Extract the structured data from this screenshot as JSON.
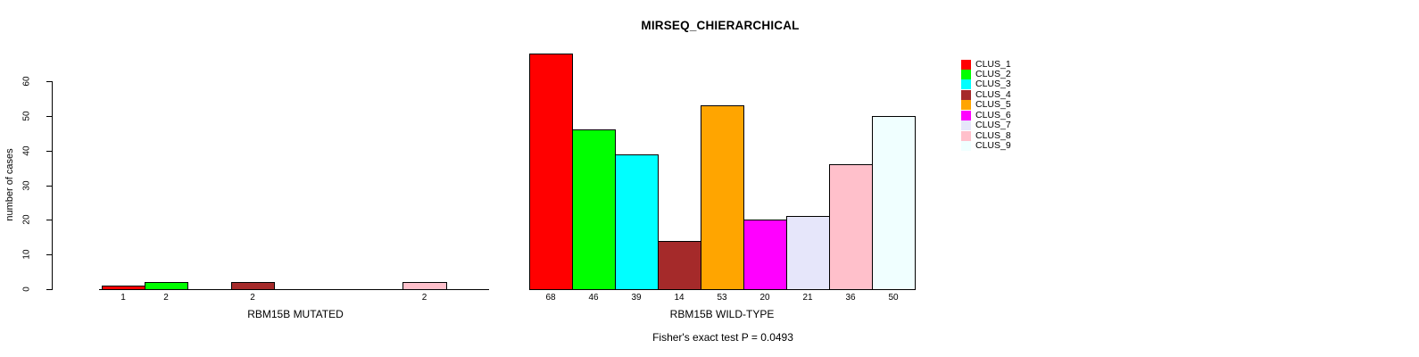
{
  "chart_data": {
    "type": "bar",
    "title": "MIRSEQ_CHIERARCHICAL",
    "ylabel": "number of cases",
    "ylim": [
      0,
      60
    ],
    "yticks": [
      0,
      10,
      20,
      30,
      40,
      50,
      60
    ],
    "grid": false,
    "legend_position": "right",
    "clusters": [
      "CLUS_1",
      "CLUS_2",
      "CLUS_3",
      "CLUS_4",
      "CLUS_5",
      "CLUS_6",
      "CLUS_7",
      "CLUS_8",
      "CLUS_9"
    ],
    "palette": [
      "#FF0000",
      "#00FF00",
      "#00FFFF",
      "#A52A2A",
      "#FFA500",
      "#FF00FF",
      "#E6E6FA",
      "#FFC0CB",
      "#F0FFFF"
    ],
    "series": [
      {
        "name": "RBM15B MUTATED",
        "values": [
          1,
          2,
          0,
          2,
          0,
          0,
          0,
          2,
          0
        ]
      },
      {
        "name": "RBM15B WILD-TYPE",
        "values": [
          68,
          46,
          39,
          14,
          53,
          20,
          21,
          36,
          50
        ]
      }
    ],
    "annotation": "Fisher's exact test P = 0.0493"
  }
}
